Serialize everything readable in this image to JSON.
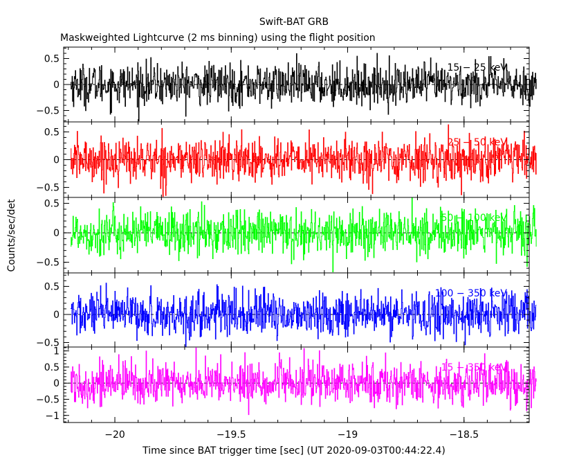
{
  "chart_data": {
    "type": "line",
    "title": "Swift-BAT GRB",
    "subtitle": "Maskweighted Lightcurve (2 ms binning) using the flight position",
    "xlabel": "Time since BAT trigger time [sec] (UT 2020-09-03T00:44:22.4)",
    "ylabel": "Counts/sec/det",
    "xlim": [
      -20.22,
      -18.22
    ],
    "xticks": [
      -20,
      -19.5,
      -19,
      -18.5
    ],
    "xtick_labels": [
      "−20",
      "−19.5",
      "−19",
      "−18.5"
    ],
    "x_start": -20.19,
    "x_end": -18.19,
    "bin_width": 0.002,
    "grid": false,
    "panels": [
      {
        "name": "15 − 25 keV",
        "color": "#000000",
        "ylim": [
          -0.72,
          0.72
        ],
        "yticks": [
          -0.5,
          0,
          0.5
        ],
        "ytick_labels": [
          "−0.5",
          "0",
          "0.5"
        ],
        "amplitude": 0.2
      },
      {
        "name": "25 − 50 keV",
        "color": "#ff0000",
        "ylim": [
          -0.68,
          0.68
        ],
        "yticks": [
          -0.5,
          0,
          0.5
        ],
        "ytick_labels": [
          "−0.5",
          "0",
          "0.5"
        ],
        "amplitude": 0.2
      },
      {
        "name": "50 − 100 keV",
        "color": "#00ff00",
        "ylim": [
          -0.68,
          0.6
        ],
        "yticks": [
          -0.5,
          0,
          0.5
        ],
        "ytick_labels": [
          "−0.5",
          "0",
          "0.5"
        ],
        "amplitude": 0.2
      },
      {
        "name": "100 − 350 keV",
        "color": "#0000ff",
        "ylim": [
          -0.58,
          0.74
        ],
        "yticks": [
          -0.5,
          0,
          0.5
        ],
        "ytick_labels": [
          "−0.5",
          "0",
          "0.5"
        ],
        "amplitude": 0.2
      },
      {
        "name": "15 − 350 keV",
        "color": "#ff00ff",
        "ylim": [
          -1.22,
          1.12
        ],
        "yticks": [
          -1,
          -0.5,
          0,
          0.5,
          1
        ],
        "ytick_labels": [
          "−1",
          "−0.5",
          "0",
          "0.5",
          "1"
        ],
        "amplitude": 0.34
      }
    ]
  }
}
